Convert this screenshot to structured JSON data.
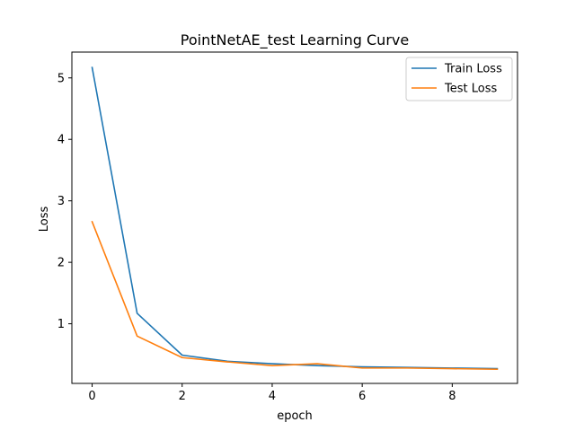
{
  "chart_data": {
    "type": "line",
    "title": "PointNetAE_test Learning Curve",
    "xlabel": "epoch",
    "ylabel": "Loss",
    "x": [
      0,
      1,
      2,
      3,
      4,
      5,
      6,
      7,
      8,
      9
    ],
    "series": [
      {
        "name": "Train Loss",
        "color": "#1f77b4",
        "values": [
          5.17,
          1.17,
          0.49,
          0.39,
          0.35,
          0.32,
          0.3,
          0.29,
          0.28,
          0.27
        ]
      },
      {
        "name": "Test Loss",
        "color": "#ff7f0e",
        "values": [
          2.66,
          0.8,
          0.45,
          0.38,
          0.32,
          0.35,
          0.28,
          0.28,
          0.27,
          0.26
        ]
      }
    ],
    "xlim": [
      -0.45,
      9.45
    ],
    "ylim": [
      0.03,
      5.42
    ],
    "xticks": [
      0,
      2,
      4,
      6,
      8
    ],
    "yticks": [
      1,
      2,
      3,
      4,
      5
    ],
    "grid": false,
    "legend_position": "top-right"
  }
}
